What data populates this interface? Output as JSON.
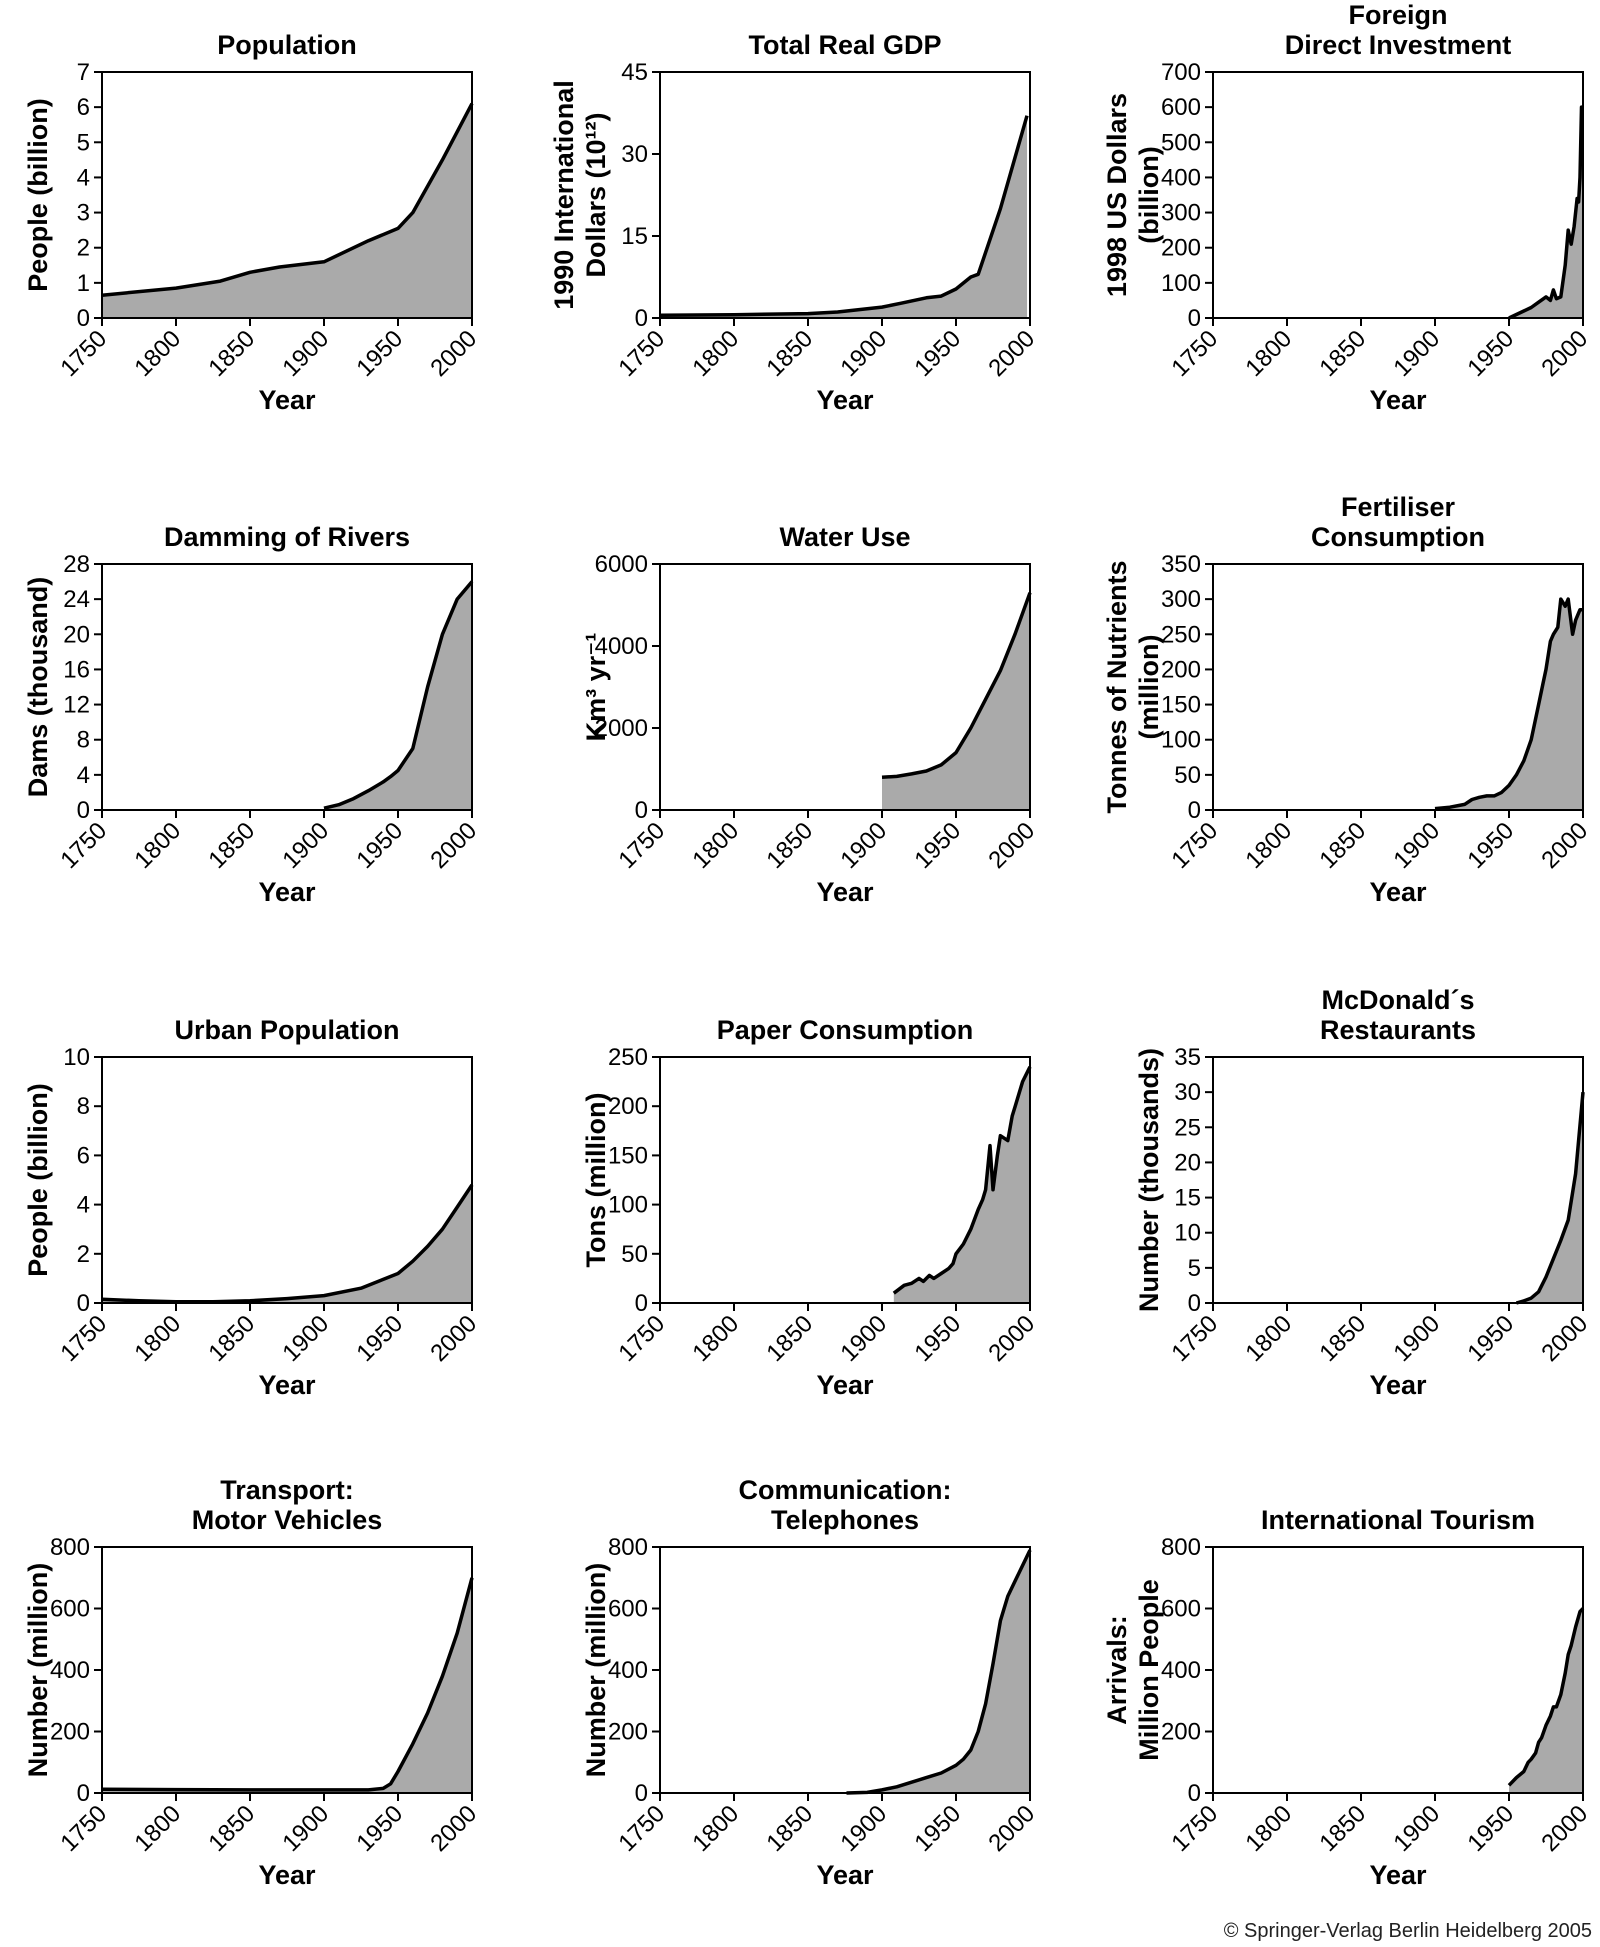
{
  "copyright": "© Springer-Verlag Berlin Heidelberg 2005",
  "style": {
    "fill": "#aaaaaa",
    "stroke": "#000000"
  },
  "chart_data": [
    {
      "type": "area",
      "title": [
        "Population"
      ],
      "ylabel": [
        "People (billion)"
      ],
      "xlabel": "Year",
      "xlim": [
        1750,
        2000
      ],
      "xticks": [
        1750,
        1800,
        1850,
        1900,
        1950,
        2000
      ],
      "ylim": [
        0,
        7
      ],
      "yticks": [
        0,
        1,
        2,
        3,
        4,
        5,
        6,
        7
      ],
      "x": [
        1750,
        1800,
        1830,
        1850,
        1870,
        1900,
        1930,
        1950,
        1960,
        1980,
        2000
      ],
      "y": [
        0.65,
        0.85,
        1.05,
        1.3,
        1.45,
        1.6,
        2.2,
        2.55,
        3.0,
        4.5,
        6.1
      ]
    },
    {
      "type": "area",
      "title": [
        "Total Real GDP"
      ],
      "ylabel": [
        "1990 International",
        "Dollars (10¹²)"
      ],
      "xlabel": "Year",
      "xlim": [
        1750,
        2000
      ],
      "xticks": [
        1750,
        1800,
        1850,
        1900,
        1950,
        2000
      ],
      "ylim": [
        0,
        45
      ],
      "yticks": [
        0,
        15,
        30,
        45
      ],
      "x": [
        1750,
        1800,
        1850,
        1870,
        1900,
        1913,
        1930,
        1940,
        1950,
        1960,
        1965,
        1980,
        1998
      ],
      "y": [
        0.5,
        0.6,
        0.8,
        1.1,
        2.0,
        2.7,
        3.7,
        4.0,
        5.3,
        7.5,
        8.0,
        20.0,
        37.0
      ]
    },
    {
      "type": "area",
      "title": [
        "Foreign",
        "Direct Investment"
      ],
      "ylabel": [
        "1998 US Dollars",
        "(billion)"
      ],
      "xlabel": "Year",
      "xlim": [
        1750,
        2000
      ],
      "xticks": [
        1750,
        1800,
        1850,
        1900,
        1950,
        2000
      ],
      "ylim": [
        0,
        700
      ],
      "yticks": [
        0,
        100,
        200,
        300,
        400,
        500,
        600,
        700
      ],
      "x": [
        1950,
        1960,
        1965,
        1970,
        1975,
        1978,
        1980,
        1982,
        1985,
        1988,
        1990,
        1992,
        1994,
        1996,
        1997,
        1998,
        1999,
        2000
      ],
      "y": [
        0,
        20,
        30,
        45,
        60,
        50,
        80,
        55,
        60,
        150,
        250,
        210,
        260,
        340,
        330,
        400,
        600,
        600
      ]
    },
    {
      "type": "area",
      "title": [
        "Damming of Rivers"
      ],
      "ylabel": [
        "Dams (thousand)"
      ],
      "xlabel": "Year",
      "xlim": [
        1750,
        2000
      ],
      "xticks": [
        1750,
        1800,
        1850,
        1900,
        1950,
        2000
      ],
      "ylim": [
        0,
        28
      ],
      "yticks": [
        0,
        4,
        8,
        12,
        16,
        20,
        24,
        28
      ],
      "x": [
        1900,
        1910,
        1920,
        1930,
        1940,
        1945,
        1950,
        1960,
        1970,
        1980,
        1990,
        2000
      ],
      "y": [
        0.2,
        0.6,
        1.3,
        2.2,
        3.2,
        3.8,
        4.5,
        7.0,
        14.0,
        20.0,
        24.0,
        26.0
      ]
    },
    {
      "type": "area",
      "title": [
        "Water Use"
      ],
      "ylabel": [
        "Km³ yr⁻¹"
      ],
      "xlabel": "Year",
      "xlim": [
        1750,
        2000
      ],
      "xticks": [
        1750,
        1800,
        1850,
        1900,
        1950,
        2000
      ],
      "ylim": [
        0,
        6000
      ],
      "yticks": [
        0,
        2000,
        4000,
        6000
      ],
      "x": [
        1900,
        1910,
        1920,
        1930,
        1940,
        1950,
        1960,
        1970,
        1980,
        1990,
        2000
      ],
      "y": [
        800,
        820,
        880,
        950,
        1100,
        1400,
        2000,
        2700,
        3400,
        4300,
        5300
      ]
    },
    {
      "type": "area",
      "title": [
        "Fertiliser",
        "Consumption"
      ],
      "ylabel": [
        "Tonnes of Nutrients",
        "(million)"
      ],
      "xlabel": "Year",
      "xlim": [
        1750,
        2000
      ],
      "xticks": [
        1750,
        1800,
        1850,
        1900,
        1950,
        2000
      ],
      "ylim": [
        0,
        350
      ],
      "yticks": [
        0,
        50,
        100,
        150,
        200,
        250,
        300,
        350
      ],
      "x": [
        1900,
        1910,
        1920,
        1925,
        1930,
        1935,
        1940,
        1945,
        1950,
        1955,
        1960,
        1965,
        1970,
        1973,
        1975,
        1978,
        1980,
        1983,
        1985,
        1988,
        1990,
        1993,
        1995,
        1998,
        2000
      ],
      "y": [
        2,
        4,
        8,
        15,
        18,
        20,
        20,
        25,
        35,
        50,
        70,
        100,
        150,
        180,
        200,
        240,
        250,
        260,
        300,
        290,
        300,
        250,
        270,
        285,
        285
      ]
    },
    {
      "type": "area",
      "title": [
        "Urban Population"
      ],
      "ylabel": [
        "People (billion)"
      ],
      "xlabel": "Year",
      "xlim": [
        1750,
        2000
      ],
      "xticks": [
        1750,
        1800,
        1850,
        1900,
        1950,
        2000
      ],
      "ylim": [
        0,
        10
      ],
      "yticks": [
        0,
        2,
        4,
        6,
        8,
        10
      ],
      "x": [
        1750,
        1775,
        1800,
        1825,
        1850,
        1875,
        1900,
        1925,
        1950,
        1960,
        1970,
        1980,
        1990,
        2000
      ],
      "y": [
        0.15,
        0.09,
        0.05,
        0.05,
        0.09,
        0.18,
        0.3,
        0.6,
        1.2,
        1.7,
        2.3,
        3.0,
        3.9,
        4.8
      ]
    },
    {
      "type": "area",
      "title": [
        "Paper Consumption"
      ],
      "ylabel": [
        "Tons (million)"
      ],
      "xlabel": "Year",
      "xlim": [
        1750,
        2000
      ],
      "xticks": [
        1750,
        1800,
        1850,
        1900,
        1950,
        2000
      ],
      "ylim": [
        0,
        250
      ],
      "yticks": [
        0,
        50,
        100,
        150,
        200,
        250
      ],
      "x": [
        1908,
        1915,
        1920,
        1925,
        1928,
        1932,
        1935,
        1940,
        1945,
        1948,
        1950,
        1955,
        1960,
        1965,
        1968,
        1970,
        1973,
        1975,
        1978,
        1980,
        1985,
        1988,
        1990,
        1995,
        2000
      ],
      "y": [
        10,
        18,
        20,
        25,
        22,
        28,
        25,
        30,
        35,
        40,
        50,
        60,
        75,
        95,
        105,
        115,
        160,
        115,
        150,
        170,
        165,
        190,
        200,
        225,
        240
      ]
    },
    {
      "type": "area",
      "title": [
        "McDonald´s",
        "Restaurants"
      ],
      "ylabel": [
        "Number (thousands)"
      ],
      "xlabel": "Year",
      "xlim": [
        1750,
        2000
      ],
      "xticks": [
        1750,
        1800,
        1850,
        1900,
        1950,
        2000
      ],
      "ylim": [
        0,
        35
      ],
      "yticks": [
        0,
        5,
        10,
        15,
        20,
        25,
        30,
        35
      ],
      "x": [
        1955,
        1960,
        1965,
        1970,
        1975,
        1980,
        1985,
        1990,
        1995,
        2000
      ],
      "y": [
        0,
        0.3,
        0.7,
        1.6,
        3.7,
        6.3,
        8.9,
        11.8,
        18.4,
        30.0
      ]
    },
    {
      "type": "area",
      "title": [
        "Transport:",
        "Motor Vehicles"
      ],
      "ylabel": [
        "Number (million)"
      ],
      "xlabel": "Year",
      "xlim": [
        1750,
        2000
      ],
      "xticks": [
        1750,
        1800,
        1850,
        1900,
        1950,
        2000
      ],
      "ylim": [
        0,
        800
      ],
      "yticks": [
        0,
        200,
        400,
        600,
        800
      ],
      "x": [
        1750,
        1800,
        1850,
        1900,
        1930,
        1940,
        1945,
        1950,
        1960,
        1970,
        1980,
        1990,
        2000
      ],
      "y": [
        12,
        11,
        10,
        10,
        10,
        15,
        30,
        70,
        160,
        260,
        380,
        520,
        700
      ]
    },
    {
      "type": "area",
      "title": [
        "Communication:",
        "Telephones"
      ],
      "ylabel": [
        "Number (million)"
      ],
      "xlabel": "Year",
      "xlim": [
        1750,
        2000
      ],
      "xticks": [
        1750,
        1800,
        1850,
        1900,
        1950,
        2000
      ],
      "ylim": [
        0,
        800
      ],
      "yticks": [
        0,
        200,
        400,
        600,
        800
      ],
      "x": [
        1876,
        1890,
        1900,
        1910,
        1920,
        1930,
        1940,
        1950,
        1955,
        1960,
        1965,
        1970,
        1975,
        1980,
        1985,
        1990,
        2000
      ],
      "y": [
        0,
        2,
        10,
        20,
        35,
        50,
        65,
        90,
        110,
        140,
        200,
        290,
        420,
        560,
        640,
        690,
        790
      ]
    },
    {
      "type": "area",
      "title": [
        "International Tourism"
      ],
      "ylabel": [
        "Arrivals:",
        "Million People"
      ],
      "xlabel": "Year",
      "xlim": [
        1750,
        2000
      ],
      "xticks": [
        1750,
        1800,
        1850,
        1900,
        1950,
        2000
      ],
      "ylim": [
        0,
        800
      ],
      "yticks": [
        0,
        200,
        400,
        600,
        800
      ],
      "x": [
        1950,
        1955,
        1960,
        1963,
        1965,
        1968,
        1970,
        1972,
        1975,
        1978,
        1980,
        1982,
        1985,
        1988,
        1990,
        1992,
        1995,
        1998,
        2000
      ],
      "y": [
        25,
        50,
        70,
        100,
        110,
        130,
        165,
        180,
        220,
        250,
        280,
        280,
        320,
        390,
        450,
        480,
        540,
        590,
        600
      ]
    }
  ]
}
